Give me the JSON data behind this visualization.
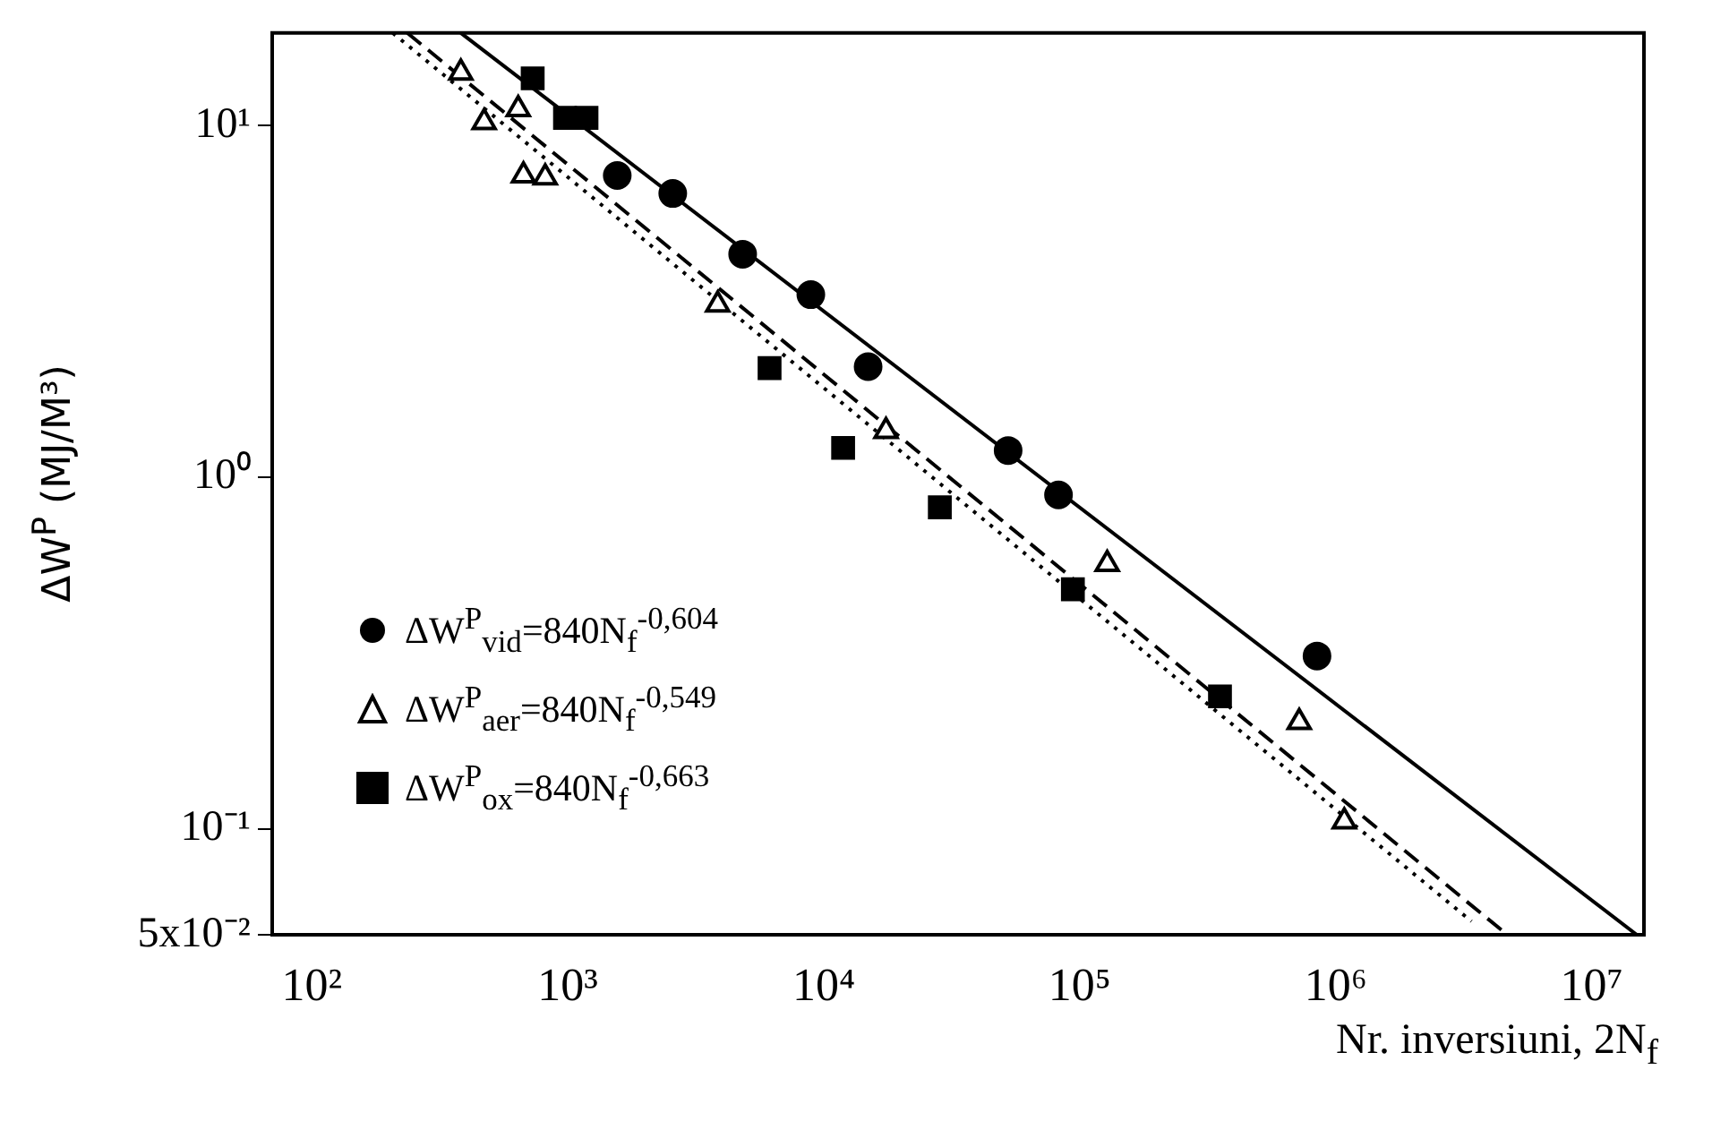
{
  "chart_data": {
    "type": "scatter",
    "xlabel": "Nr. inversiuni, 2N$_{f}$",
    "ylabel": "ΔW$^{P}$ (MJ/M³)",
    "log": "xy",
    "grid": false,
    "legend": "bottom left",
    "xlim": [
      70,
      16000000
    ],
    "xticks": [
      {
        "value": 100,
        "label": "10²"
      },
      {
        "value": 1000,
        "label": "10³"
      },
      {
        "value": 10000,
        "label": "10⁴"
      },
      {
        "value": 100000,
        "label": "10⁵"
      },
      {
        "value": 1000000,
        "label": "10⁶"
      },
      {
        "value": 10000000,
        "label": "10⁷"
      }
    ],
    "ylim": [
      0.05,
      18.3
    ],
    "yticks": [
      {
        "value": 0.05,
        "label": "5x10⁻²"
      },
      {
        "value": 0.1,
        "label": "10⁻¹"
      },
      {
        "value": 1,
        "label": "10⁰"
      },
      {
        "value": 10,
        "label": "10¹"
      }
    ],
    "series": [
      {
        "name": "ΔW$^{P}$$_{vid}$=840N$_{f}$$^{-0,604}$",
        "color": "#000000",
        "marker": "circle",
        "x": [
          1560,
          2570,
          4820,
          8900,
          14900,
          52500,
          82600,
          845000
        ],
        "values": [
          7.2,
          6.4,
          4.3,
          3.3,
          2.06,
          1.19,
          0.89,
          0.31
        ]
      },
      {
        "name": "ΔW$^{P}$$_{aer}$=840N$_{f}$$^{-0,549}$",
        "color": "#000000",
        "marker": "triangle",
        "x": [
          382,
          471,
          640,
          671,
          816,
          3850,
          17500,
          128000,
          720000,
          1080000
        ],
        "values": [
          14.1,
          10.2,
          11.1,
          7.2,
          7.1,
          3.09,
          1.35,
          0.566,
          0.201,
          0.105
        ]
      },
      {
        "name": "ΔW$^{P}$$_{ox}$=840N$_{f}$$^{-0,663}$",
        "color": "#000000",
        "marker": "square",
        "x": [
          729,
          975,
          1183,
          6140,
          11900,
          28400,
          94000,
          353000
        ],
        "values": [
          13.6,
          10.5,
          10.5,
          2.04,
          1.21,
          0.82,
          0.48,
          0.238
        ]
      },
      {
        "type": "line",
        "color": "#000000",
        "line_style": "solid",
        "marker": "none",
        "x": [
          382,
          15000000
        ],
        "values": [
          18.3,
          0.05
        ]
      },
      {
        "type": "line",
        "color": "#000000",
        "line_style": "dashed",
        "marker": "none",
        "x": [
          236,
          4680000
        ],
        "values": [
          18.3,
          0.05
        ]
      },
      {
        "type": "line",
        "color": "#000000",
        "line_style": "dotted",
        "marker": "none",
        "x": [
          207,
          3390000
        ],
        "values": [
          18.3,
          0.0546
        ]
      }
    ]
  }
}
